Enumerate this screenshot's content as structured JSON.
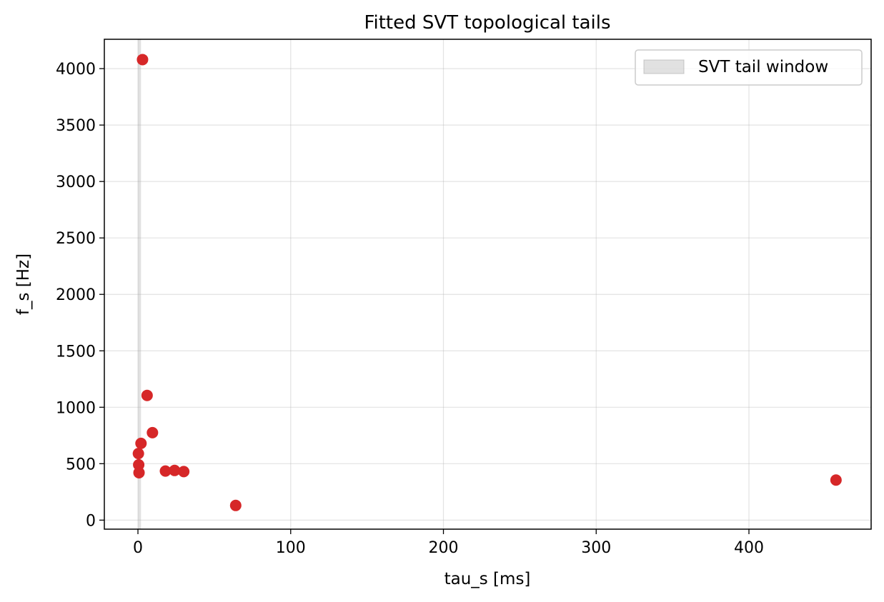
{
  "chart_data": {
    "type": "scatter",
    "title": "Fitted SVT topological tails",
    "xlabel": "tau_s [ms]",
    "ylabel": "f_s [Hz]",
    "xlim": [
      -22,
      480
    ],
    "ylim": [
      -80,
      4260
    ],
    "xticks": [
      0,
      100,
      200,
      300,
      400
    ],
    "yticks": [
      0,
      500,
      1000,
      1500,
      2000,
      2500,
      3000,
      3500,
      4000
    ],
    "grid": true,
    "legend_position": "upper right",
    "colors": {
      "points": "#d62728",
      "band": "#a9a9a9"
    },
    "bands": [
      {
        "label": "SVT tail window",
        "x0": 0,
        "x1": 2
      }
    ],
    "series": [
      {
        "x": [
          3,
          6,
          9.5,
          2,
          0.3,
          0.5,
          0.7,
          18,
          24,
          30,
          64,
          457
        ],
        "y": [
          4080,
          1105,
          775,
          680,
          590,
          490,
          420,
          435,
          440,
          430,
          130,
          355
        ]
      }
    ]
  }
}
